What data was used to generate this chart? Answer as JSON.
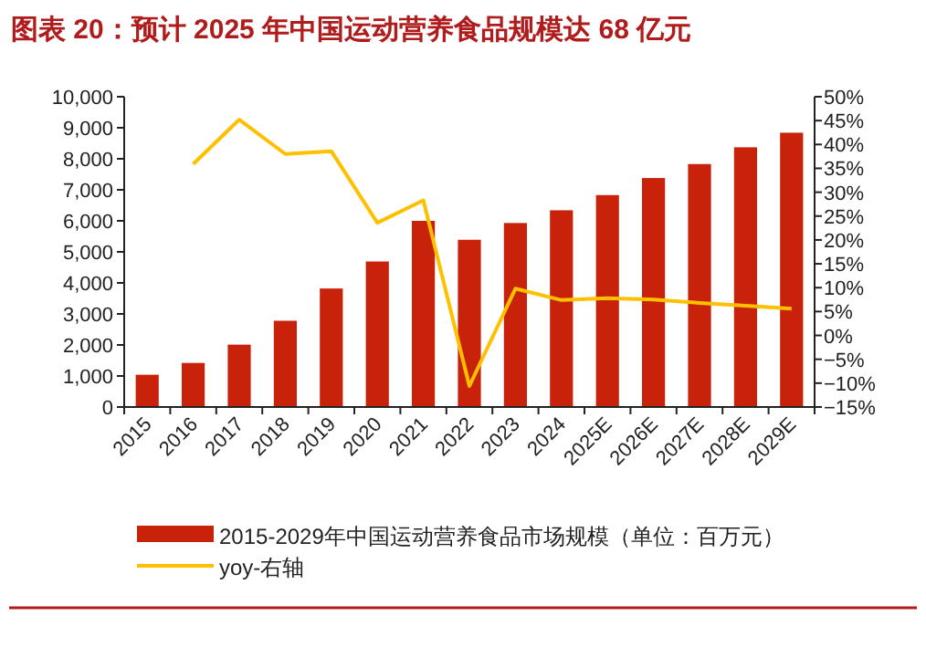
{
  "chart_data": {
    "type": "bar",
    "title": "图表 20：预计 2025 年中国运动营养食品规模达 68 亿元",
    "categories": [
      "2015",
      "2016",
      "2017",
      "2018",
      "2019",
      "2020",
      "2021",
      "2022",
      "2023",
      "2024",
      "2025E",
      "2026E",
      "2027E",
      "2028E",
      "2029E"
    ],
    "series": [
      {
        "name": "2015-2029年中国运动营养食品市场规模（单位：百万元）",
        "color": "#c8230a",
        "values": [
          1040,
          1420,
          2010,
          2780,
          3820,
          4690,
          6000,
          5390,
          5930,
          6340,
          6830,
          7380,
          7830,
          8370,
          8840
        ]
      },
      {
        "name": "yoy-右轴",
        "type": "line",
        "axis": "y2",
        "color": "#ffc000",
        "values": [
          null,
          35.9,
          45.2,
          38.0,
          38.6,
          23.6,
          28.3,
          -10.6,
          9.8,
          7.4,
          7.8,
          7.5,
          6.8,
          6.2,
          5.6
        ]
      }
    ],
    "ylim": [
      0,
      10000
    ],
    "yticks": [
      0,
      {
        "value": 1000,
        "label": "1,000"
      },
      {
        "value": 2000,
        "label": "2,000"
      },
      {
        "value": 3000,
        "label": "3,000"
      },
      {
        "value": 4000,
        "label": "4,000"
      },
      {
        "value": 5000,
        "label": "5,000"
      },
      {
        "value": 6000,
        "label": "6,000"
      },
      {
        "value": 7000,
        "label": "7,000"
      },
      {
        "value": 8000,
        "label": "8,000"
      },
      {
        "value": 9000,
        "label": "9,000"
      },
      {
        "value": 10000,
        "label": "10,000"
      }
    ],
    "y2lim": [
      -15,
      50
    ],
    "y2ticks": [
      {
        "value": -15,
        "label": "−15%"
      },
      {
        "value": -10,
        "label": "−10%"
      },
      {
        "value": -5,
        "label": "−5%"
      },
      {
        "value": 0,
        "label": "0%"
      },
      {
        "value": 5,
        "label": "5%"
      },
      {
        "value": 10,
        "label": "10%"
      },
      {
        "value": 15,
        "label": "15%"
      },
      {
        "value": 20,
        "label": "20%"
      },
      {
        "value": 25,
        "label": "25%"
      },
      {
        "value": 30,
        "label": "30%"
      },
      {
        "value": 35,
        "label": "35%"
      },
      {
        "value": 40,
        "label": "40%"
      },
      {
        "value": 45,
        "label": "45%"
      },
      {
        "value": 50,
        "label": "50%"
      }
    ],
    "legend": "bottom",
    "grid": false
  }
}
